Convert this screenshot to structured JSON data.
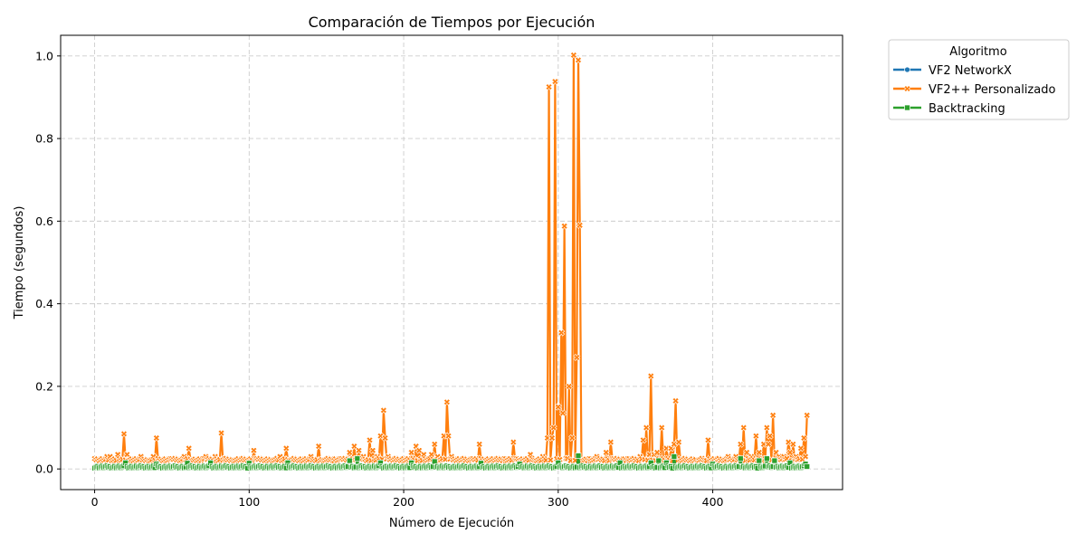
{
  "chart_data": {
    "type": "line",
    "title": "Comparación de Tiempos por Ejecución",
    "xlabel": "Número de Ejecución",
    "ylabel": "Tiempo (segundos)",
    "xlim": [
      -22,
      484
    ],
    "ylim": [
      -0.05,
      1.05
    ],
    "xticks": [
      0,
      100,
      200,
      300,
      400
    ],
    "yticks": [
      0.0,
      0.2,
      0.4,
      0.6,
      0.8,
      1.0
    ],
    "ytick_labels": [
      "0.0",
      "0.2",
      "0.4",
      "0.6",
      "0.8",
      "1.0"
    ],
    "grid": true,
    "legend": {
      "title": "Algoritmo",
      "placement": "outside-top-right",
      "entries": [
        "VF2 NetworkX",
        "VF2++ Personalizado",
        "Backtracking"
      ]
    },
    "n_points": 462,
    "series": [
      {
        "name": "VF2 NetworkX",
        "color": "#1f77b4",
        "marker": "circle",
        "base": 0.003,
        "points": [
          [
            140,
            0.012
          ],
          [
            200,
            0.008
          ],
          [
            320,
            0.015
          ],
          [
            400,
            0.01
          ],
          [
            440,
            0.014
          ],
          [
            460,
            0.012
          ]
        ]
      },
      {
        "name": "VF2++ Personalizado",
        "color": "#ff7f0e",
        "marker": "x",
        "base": 0.02,
        "points": [
          [
            0,
            0.025
          ],
          [
            3,
            0.02
          ],
          [
            8,
            0.03
          ],
          [
            10,
            0.03
          ],
          [
            15,
            0.035
          ],
          [
            19,
            0.085
          ],
          [
            21,
            0.035
          ],
          [
            25,
            0.02
          ],
          [
            30,
            0.03
          ],
          [
            35,
            0.02
          ],
          [
            38,
            0.03
          ],
          [
            40,
            0.075
          ],
          [
            42,
            0.02
          ],
          [
            50,
            0.025
          ],
          [
            58,
            0.03
          ],
          [
            61,
            0.05
          ],
          [
            63,
            0.02
          ],
          [
            70,
            0.025
          ],
          [
            72,
            0.03
          ],
          [
            78,
            0.03
          ],
          [
            82,
            0.087
          ],
          [
            84,
            0.025
          ],
          [
            90,
            0.02
          ],
          [
            103,
            0.045
          ],
          [
            105,
            0.025
          ],
          [
            115,
            0.02
          ],
          [
            120,
            0.03
          ],
          [
            124,
            0.05
          ],
          [
            126,
            0.02
          ],
          [
            135,
            0.02
          ],
          [
            140,
            0.03
          ],
          [
            145,
            0.055
          ],
          [
            148,
            0.02
          ],
          [
            155,
            0.02
          ],
          [
            160,
            0.025
          ],
          [
            165,
            0.04
          ],
          [
            168,
            0.055
          ],
          [
            171,
            0.045
          ],
          [
            174,
            0.03
          ],
          [
            178,
            0.07
          ],
          [
            180,
            0.045
          ],
          [
            183,
            0.03
          ],
          [
            185,
            0.08
          ],
          [
            187,
            0.142
          ],
          [
            188,
            0.075
          ],
          [
            190,
            0.03
          ],
          [
            200,
            0.025
          ],
          [
            205,
            0.04
          ],
          [
            208,
            0.055
          ],
          [
            210,
            0.045
          ],
          [
            213,
            0.035
          ],
          [
            218,
            0.035
          ],
          [
            220,
            0.06
          ],
          [
            222,
            0.03
          ],
          [
            226,
            0.08
          ],
          [
            228,
            0.162
          ],
          [
            229,
            0.08
          ],
          [
            231,
            0.03
          ],
          [
            240,
            0.02
          ],
          [
            245,
            0.025
          ],
          [
            249,
            0.06
          ],
          [
            251,
            0.02
          ],
          [
            258,
            0.025
          ],
          [
            265,
            0.025
          ],
          [
            271,
            0.065
          ],
          [
            273,
            0.025
          ],
          [
            282,
            0.035
          ],
          [
            285,
            0.02
          ],
          [
            290,
            0.03
          ],
          [
            293,
            0.075
          ],
          [
            294,
            0.925
          ],
          [
            296,
            0.075
          ],
          [
            297,
            0.1
          ],
          [
            298,
            0.938
          ],
          [
            300,
            0.15
          ],
          [
            302,
            0.33
          ],
          [
            303,
            0.135
          ],
          [
            304,
            0.588
          ],
          [
            306,
            0.025
          ],
          [
            307,
            0.2
          ],
          [
            309,
            0.075
          ],
          [
            310,
            1.002
          ],
          [
            312,
            0.27
          ],
          [
            313,
            0.99
          ],
          [
            314,
            0.59
          ],
          [
            316,
            0.02
          ],
          [
            320,
            0.025
          ],
          [
            325,
            0.03
          ],
          [
            331,
            0.04
          ],
          [
            334,
            0.065
          ],
          [
            336,
            0.025
          ],
          [
            342,
            0.02
          ],
          [
            345,
            0.025
          ],
          [
            350,
            0.02
          ],
          [
            353,
            0.03
          ],
          [
            355,
            0.07
          ],
          [
            357,
            0.1
          ],
          [
            359,
            0.035
          ],
          [
            360,
            0.225
          ],
          [
            362,
            0.035
          ],
          [
            364,
            0.04
          ],
          [
            367,
            0.1
          ],
          [
            370,
            0.05
          ],
          [
            373,
            0.05
          ],
          [
            375,
            0.06
          ],
          [
            376,
            0.165
          ],
          [
            378,
            0.065
          ],
          [
            380,
            0.02
          ],
          [
            390,
            0.015
          ],
          [
            395,
            0.02
          ],
          [
            397,
            0.07
          ],
          [
            399,
            0.02
          ],
          [
            405,
            0.02
          ],
          [
            410,
            0.03
          ],
          [
            415,
            0.03
          ],
          [
            418,
            0.06
          ],
          [
            420,
            0.1
          ],
          [
            422,
            0.04
          ],
          [
            425,
            0.03
          ],
          [
            428,
            0.08
          ],
          [
            430,
            0.04
          ],
          [
            433,
            0.06
          ],
          [
            435,
            0.1
          ],
          [
            436,
            0.06
          ],
          [
            437,
            0.08
          ],
          [
            439,
            0.13
          ],
          [
            441,
            0.04
          ],
          [
            443,
            0.03
          ],
          [
            446,
            0.03
          ],
          [
            449,
            0.065
          ],
          [
            450,
            0.04
          ],
          [
            452,
            0.06
          ],
          [
            454,
            0.03
          ],
          [
            457,
            0.05
          ],
          [
            459,
            0.075
          ],
          [
            460,
            0.03
          ],
          [
            461,
            0.13
          ]
        ]
      },
      {
        "name": "Backtracking",
        "color": "#2ca02c",
        "marker": "square",
        "base": 0.002,
        "points": [
          [
            20,
            0.015
          ],
          [
            40,
            0.012
          ],
          [
            60,
            0.014
          ],
          [
            75,
            0.015
          ],
          [
            100,
            0.014
          ],
          [
            125,
            0.015
          ],
          [
            165,
            0.02
          ],
          [
            170,
            0.025
          ],
          [
            185,
            0.015
          ],
          [
            205,
            0.015
          ],
          [
            220,
            0.018
          ],
          [
            250,
            0.014
          ],
          [
            275,
            0.012
          ],
          [
            300,
            0.015
          ],
          [
            313,
            0.032
          ],
          [
            340,
            0.015
          ],
          [
            360,
            0.015
          ],
          [
            365,
            0.02
          ],
          [
            370,
            0.015
          ],
          [
            375,
            0.03
          ],
          [
            400,
            0.012
          ],
          [
            418,
            0.025
          ],
          [
            430,
            0.02
          ],
          [
            435,
            0.025
          ],
          [
            440,
            0.02
          ],
          [
            450,
            0.015
          ],
          [
            460,
            0.012
          ]
        ]
      }
    ]
  }
}
